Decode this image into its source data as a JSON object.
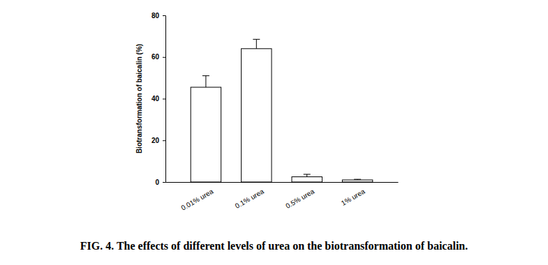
{
  "chart_data": {
    "type": "bar",
    "title": "FIG. 4. The effects of different levels of urea on the biotransformation of baicalin.",
    "y_label": "Biotransformation of baicalin (%)",
    "categories": [
      "0.01% urea",
      "0.1% urea",
      "0.5% urea",
      "1% urea"
    ],
    "values": [
      45.5,
      64,
      2.5,
      1
    ],
    "errors": [
      5.5,
      4.5,
      1.2,
      0.3
    ],
    "color": "#ffffff",
    "ylim": [
      0,
      80
    ],
    "yticks": [
      0,
      20,
      40,
      60,
      80
    ],
    "grid": false
  }
}
